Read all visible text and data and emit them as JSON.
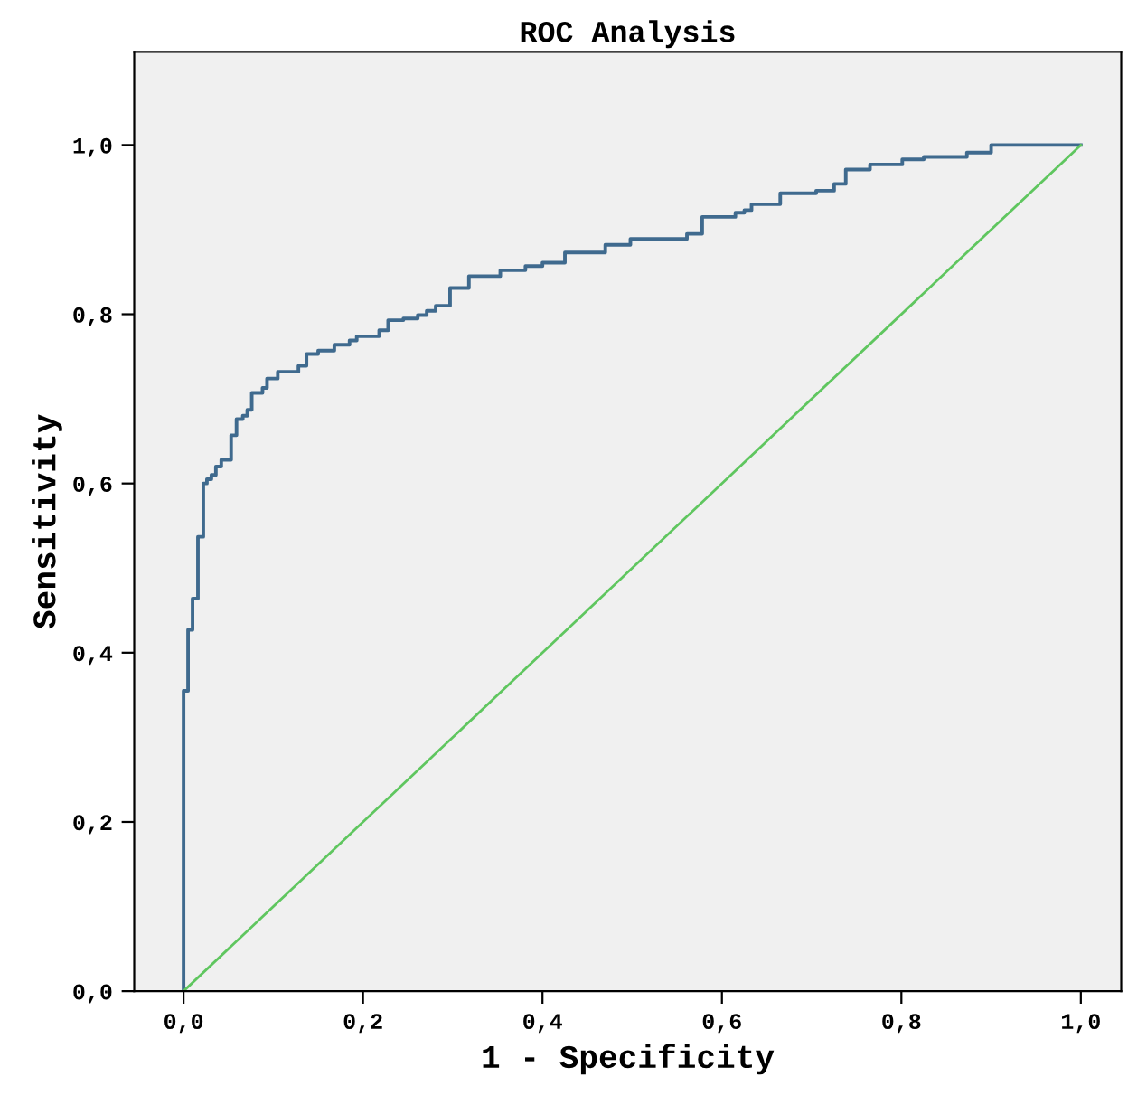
{
  "chart_data": {
    "type": "line",
    "title": "ROC Analysis",
    "xlabel": "1 - Specificity",
    "ylabel": "Sensitivity",
    "xlim": [
      -0.055,
      1.045
    ],
    "ylim": [
      0,
      1.11
    ],
    "xticks": [
      {
        "value": 0,
        "label": "0,0"
      },
      {
        "value": 0.2,
        "label": "0,2"
      },
      {
        "value": 0.4,
        "label": "0,4"
      },
      {
        "value": 0.6,
        "label": "0,6"
      },
      {
        "value": 0.8,
        "label": "0,8"
      },
      {
        "value": 1.0,
        "label": "1,0"
      }
    ],
    "yticks": [
      {
        "value": 0,
        "label": "0,0"
      },
      {
        "value": 0.2,
        "label": "0,2"
      },
      {
        "value": 0.4,
        "label": "0,4"
      },
      {
        "value": 0.6,
        "label": "0,6"
      },
      {
        "value": 0.8,
        "label": "0,8"
      },
      {
        "value": 1.0,
        "label": "1,0"
      }
    ],
    "grid": false,
    "legend": false,
    "series": [
      {
        "type": "step",
        "color": "#3f6a8e",
        "x": [
          0,
          0,
          0.005,
          0.01,
          0.016,
          0.022,
          0.026,
          0.031,
          0.036,
          0.042,
          0.053,
          0.059,
          0.066,
          0.071,
          0.076,
          0.088,
          0.093,
          0.105,
          0.128,
          0.137,
          0.15,
          0.168,
          0.185,
          0.193,
          0.218,
          0.228,
          0.245,
          0.261,
          0.271,
          0.281,
          0.297,
          0.318,
          0.353,
          0.381,
          0.4,
          0.425,
          0.47,
          0.498,
          0.561,
          0.578,
          0.615,
          0.625,
          0.633,
          0.665,
          0.705,
          0.725,
          0.738,
          0.765,
          0.801,
          0.825,
          0.873,
          0.9,
          1.0
        ],
        "values": [
          0,
          0.355,
          0.427,
          0.464,
          0.537,
          0.6,
          0.605,
          0.61,
          0.62,
          0.628,
          0.657,
          0.676,
          0.68,
          0.687,
          0.707,
          0.713,
          0.724,
          0.732,
          0.739,
          0.753,
          0.757,
          0.764,
          0.769,
          0.774,
          0.781,
          0.793,
          0.795,
          0.799,
          0.804,
          0.81,
          0.831,
          0.845,
          0.852,
          0.857,
          0.861,
          0.873,
          0.882,
          0.889,
          0.895,
          0.915,
          0.92,
          0.923,
          0.93,
          0.943,
          0.946,
          0.954,
          0.971,
          0.977,
          0.983,
          0.986,
          0.991,
          1.0,
          1.0
        ]
      },
      {
        "color": "#5fc65f",
        "x": [
          0,
          1.0
        ],
        "values": [
          0,
          1.0
        ]
      }
    ]
  }
}
